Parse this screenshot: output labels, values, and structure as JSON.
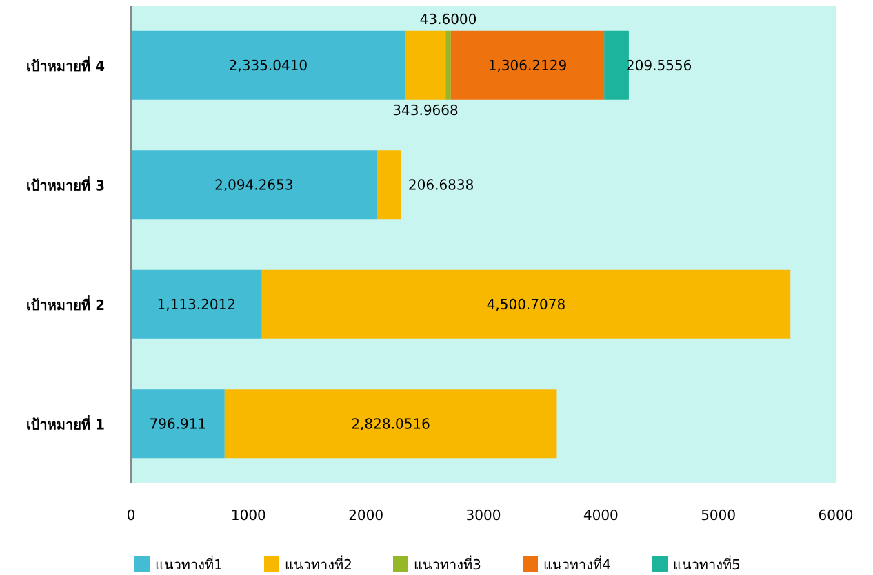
{
  "chart_data": {
    "type": "bar",
    "orientation": "horizontal",
    "stacked": true,
    "categories": [
      "เป้าหมายที่ 1",
      "เป้าหมายที่ 2",
      "เป้าหมายที่ 3",
      "เป้าหมายที่ 4"
    ],
    "series": [
      {
        "name": "แนวทางที่1",
        "color": "#43bcd4",
        "values": [
          796.911,
          1113.2012,
          2094.2653,
          2335.041
        ],
        "labels": [
          "796.911",
          "1,113.2012",
          "2,094.2653",
          "2,335.0410"
        ]
      },
      {
        "name": "แนวทางที่2",
        "color": "#f9b800",
        "values": [
          2828.0516,
          4500.7078,
          206.6838,
          343.9668
        ],
        "labels": [
          "2,828.0516",
          "4,500.7078",
          "206.6838",
          "343.9668"
        ]
      },
      {
        "name": "แนวทางที่3",
        "color": "#96b827",
        "values": [
          0,
          0,
          0,
          43.6
        ],
        "labels": [
          "",
          "",
          "",
          "43.6000"
        ]
      },
      {
        "name": "แนวทางที่4",
        "color": "#ee730f",
        "values": [
          0,
          0,
          0,
          1306.2129
        ],
        "labels": [
          "",
          "",
          "",
          "1,306.2129"
        ]
      },
      {
        "name": "แนวทางที่5",
        "color": "#1db49c",
        "values": [
          0,
          0,
          0,
          209.5556
        ],
        "labels": [
          "",
          "",
          "",
          "209.5556"
        ]
      }
    ],
    "xlim": [
      0,
      6000
    ],
    "xticks": [
      "0",
      "1000",
      "2000",
      "3000",
      "4000",
      "5000",
      "6000"
    ],
    "plot_background": "#c9f5f0",
    "grid": false,
    "legend_position": "bottom"
  }
}
